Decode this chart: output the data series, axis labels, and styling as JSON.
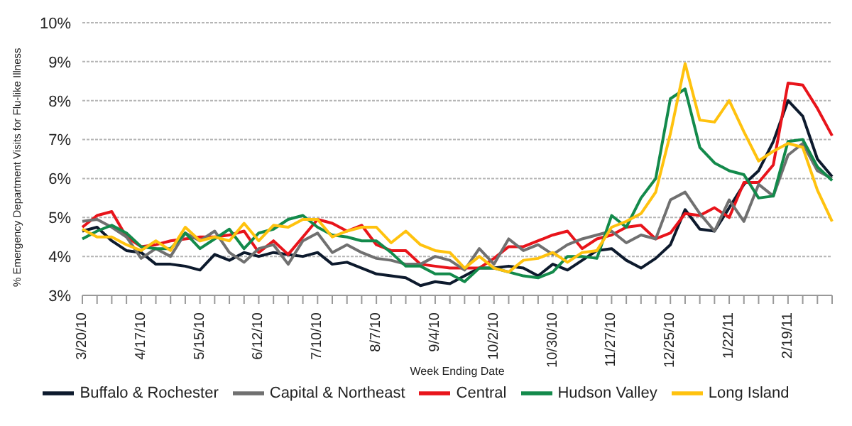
{
  "chart_data": {
    "type": "line",
    "xlabel": "Week Ending Date",
    "ylabel": "% Emergency Department Visits for Flu-like Illness",
    "categories": [
      "3/20/10",
      null,
      null,
      null,
      "4/17/10",
      null,
      null,
      null,
      "5/15/10",
      null,
      null,
      null,
      "6/12/10",
      null,
      null,
      null,
      "7/10/10",
      null,
      null,
      null,
      "8/7/10",
      null,
      null,
      null,
      "9/4/10",
      null,
      null,
      null,
      "10/2/10",
      null,
      null,
      null,
      "10/30/10",
      null,
      null,
      null,
      "11/27/10",
      null,
      null,
      null,
      "12/25/10",
      null,
      null,
      null,
      "1/22/11",
      null,
      null,
      null,
      "2/19/11",
      null,
      null,
      null
    ],
    "ylim": [
      3,
      10
    ],
    "yticks": [
      {
        "value": 3,
        "label": "3%"
      },
      {
        "value": 4,
        "label": "4%"
      },
      {
        "value": 5,
        "label": "5%"
      },
      {
        "value": 6,
        "label": "6%"
      },
      {
        "value": 7,
        "label": "7%"
      },
      {
        "value": 8,
        "label": "8%"
      },
      {
        "value": 9,
        "label": "9%"
      },
      {
        "value": 10,
        "label": "10%"
      }
    ],
    "grid": "y",
    "legend": "bottom",
    "marker": "none",
    "line_style": "solid",
    "series": [
      {
        "name": "Buffalo & Rochester",
        "color": "#0d1a2d",
        "values": [
          4.65,
          4.75,
          4.4,
          4.15,
          4.1,
          3.8,
          3.8,
          3.75,
          3.65,
          4.05,
          3.9,
          4.1,
          4.0,
          4.1,
          4.05,
          4.0,
          4.1,
          3.8,
          3.85,
          3.7,
          3.55,
          3.5,
          3.45,
          3.25,
          3.35,
          3.3,
          3.5,
          3.7,
          3.7,
          3.75,
          3.7,
          3.5,
          3.8,
          3.65,
          3.9,
          4.15,
          4.2,
          3.9,
          3.7,
          3.95,
          4.3,
          5.2,
          4.7,
          4.65,
          5.25,
          5.85,
          6.2,
          6.95,
          8.0,
          7.6,
          6.5,
          6.05
        ]
      },
      {
        "name": "Central",
        "color": "#e8141b",
        "values": [
          4.75,
          5.05,
          5.15,
          4.5,
          4.25,
          4.3,
          4.4,
          4.45,
          4.5,
          4.5,
          4.55,
          4.65,
          4.1,
          4.4,
          4.05,
          4.5,
          4.95,
          4.85,
          4.65,
          4.8,
          4.3,
          4.15,
          4.15,
          3.8,
          3.75,
          3.7,
          3.7,
          3.7,
          3.95,
          4.25,
          4.25,
          4.4,
          4.55,
          4.65,
          4.2,
          4.45,
          4.55,
          4.75,
          4.8,
          4.45,
          4.6,
          5.1,
          5.05,
          5.25,
          5.0,
          5.9,
          5.9,
          6.35,
          8.45,
          8.4,
          7.8,
          7.1
        ]
      },
      {
        "name": "Capital & Northeast",
        "color": "#707070",
        "values": [
          4.9,
          4.95,
          4.75,
          4.5,
          3.95,
          4.2,
          4.0,
          4.6,
          4.4,
          4.65,
          4.1,
          3.85,
          4.2,
          4.3,
          3.8,
          4.4,
          4.6,
          4.1,
          4.3,
          4.1,
          3.95,
          3.9,
          3.8,
          3.8,
          4.0,
          3.9,
          3.65,
          4.2,
          3.8,
          4.45,
          4.15,
          4.3,
          4.05,
          4.3,
          4.45,
          4.55,
          4.65,
          4.35,
          4.55,
          4.45,
          5.45,
          5.65,
          5.1,
          4.65,
          5.45,
          4.9,
          5.85,
          5.55,
          6.6,
          6.9,
          6.2,
          6.0
        ]
      },
      {
        "name": "Hudson Valley",
        "color": "#138a4b",
        "values": [
          4.45,
          4.65,
          4.8,
          4.6,
          4.25,
          4.2,
          4.2,
          4.6,
          4.2,
          4.45,
          4.7,
          4.2,
          4.6,
          4.7,
          4.95,
          5.05,
          4.75,
          4.55,
          4.5,
          4.4,
          4.4,
          4.1,
          3.75,
          3.75,
          3.55,
          3.55,
          3.35,
          3.7,
          3.7,
          3.6,
          3.5,
          3.45,
          3.6,
          4.0,
          4.0,
          3.95,
          5.05,
          4.75,
          5.5,
          6.0,
          8.05,
          8.3,
          6.8,
          6.4,
          6.2,
          6.1,
          5.5,
          5.55,
          6.95,
          7.0,
          6.3,
          5.95
        ]
      },
      {
        "name": "Long Island",
        "color": "#ffc20e",
        "values": [
          4.7,
          4.5,
          4.5,
          4.3,
          4.15,
          4.4,
          4.15,
          4.75,
          4.4,
          4.5,
          4.4,
          4.85,
          4.4,
          4.8,
          4.75,
          4.95,
          4.95,
          4.5,
          4.65,
          4.75,
          4.75,
          4.35,
          4.65,
          4.3,
          4.15,
          4.1,
          3.7,
          4.0,
          3.7,
          3.6,
          3.9,
          3.95,
          4.1,
          3.85,
          4.1,
          4.15,
          4.75,
          4.9,
          5.1,
          5.65,
          7.15,
          8.95,
          7.5,
          7.45,
          8.0,
          7.2,
          6.45,
          6.7,
          6.9,
          6.8,
          5.7,
          4.9
        ]
      }
    ]
  }
}
